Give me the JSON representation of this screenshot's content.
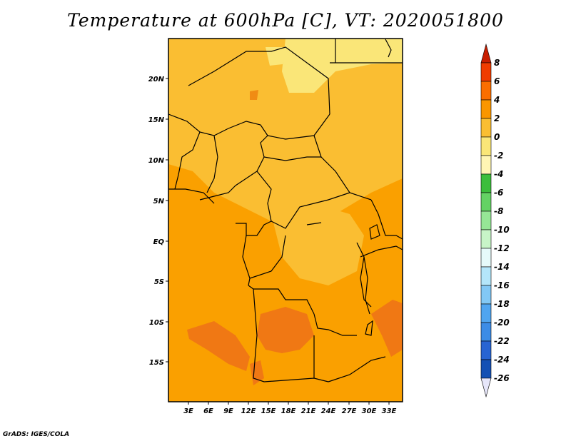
{
  "title": "Temperature at 600hPa [C], VT: 2020051800",
  "credit": "GrADS: IGES/COLA",
  "axes": {
    "lat_labels": [
      "20N",
      "15N",
      "10N",
      "5N",
      "EQ",
      "5S",
      "10S",
      "15S"
    ],
    "lon_labels": [
      "3E",
      "6E",
      "9E",
      "12E",
      "15E",
      "18E",
      "21E",
      "24E",
      "27E",
      "30E",
      "33E"
    ]
  },
  "colorbar": {
    "labels": [
      "8",
      "6",
      "4",
      "2",
      "0",
      "-2",
      "-4",
      "-6",
      "-8",
      "-10",
      "-12",
      "-14",
      "-16",
      "-18",
      "-20",
      "-22",
      "-24",
      "-26"
    ],
    "colors": [
      "#c81e00",
      "#f03c00",
      "#fa6e00",
      "#fa9600",
      "#fabe32",
      "#fae678",
      "#fff5b4",
      "#3cbe3c",
      "#64d264",
      "#96e696",
      "#c8f5c8",
      "#e6fafa",
      "#b4e6fa",
      "#82c8f5",
      "#50a5f0",
      "#3c8ce6",
      "#2864d2",
      "#1450b4",
      "#0a2896",
      "#000064",
      "#e6e6fa"
    ]
  }
}
